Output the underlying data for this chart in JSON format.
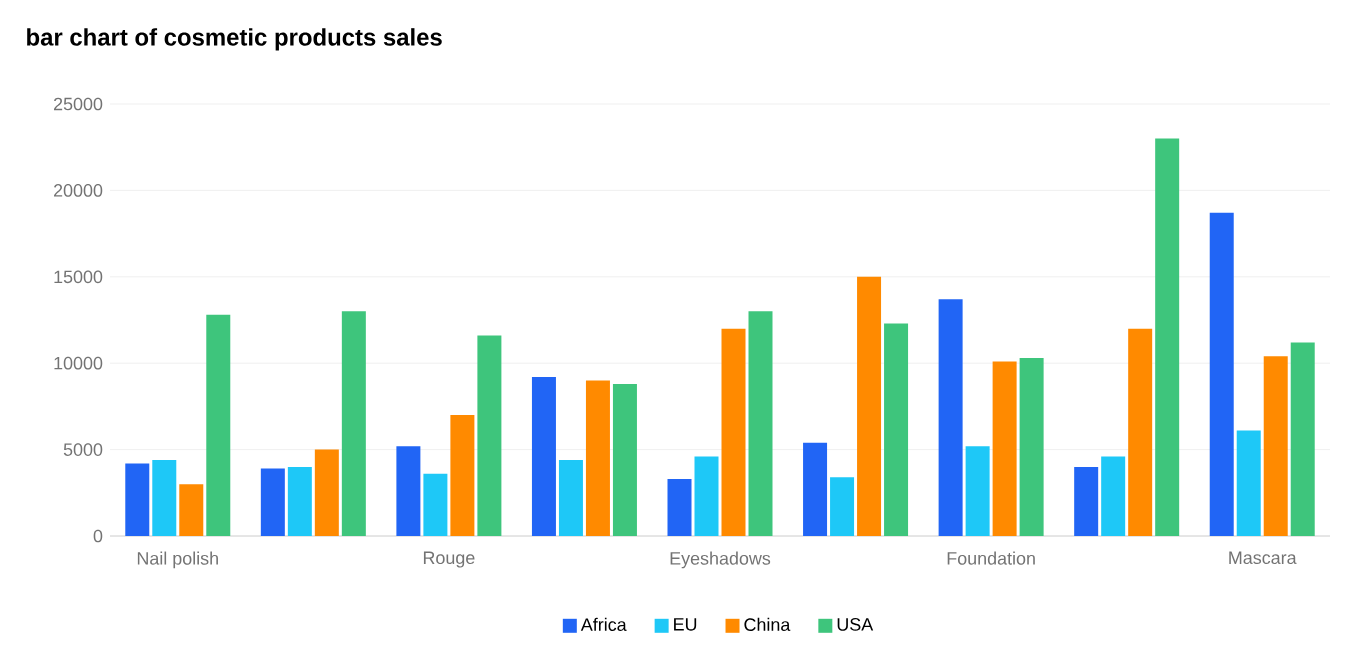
{
  "chart_data": {
    "type": "bar",
    "title": "bar chart of cosmetic products sales",
    "categories": [
      "Nail polish",
      null,
      "Rouge",
      null,
      "Eyeshadows",
      null,
      "Foundation",
      null,
      "Mascara"
    ],
    "series": [
      {
        "name": "Africa",
        "color": "#2165f5",
        "values": [
          4200,
          3900,
          5200,
          9200,
          3300,
          5400,
          13700,
          4000,
          18700
        ]
      },
      {
        "name": "EU",
        "color": "#1ec8f7",
        "values": [
          4400,
          4000,
          3600,
          4400,
          4600,
          3400,
          5200,
          4600,
          6100
        ]
      },
      {
        "name": "China",
        "color": "#ff8a00",
        "values": [
          3000,
          5000,
          7000,
          9000,
          12000,
          15000,
          10100,
          12000,
          10400
        ]
      },
      {
        "name": "USA",
        "color": "#3ec57c",
        "values": [
          12800,
          13000,
          11600,
          8800,
          13000,
          12300,
          10300,
          23000,
          11200
        ]
      }
    ],
    "ylim": [
      0,
      25000
    ],
    "yticks": [
      0,
      5000,
      10000,
      15000,
      20000,
      25000
    ],
    "grid": "y",
    "legend": "bottom"
  }
}
